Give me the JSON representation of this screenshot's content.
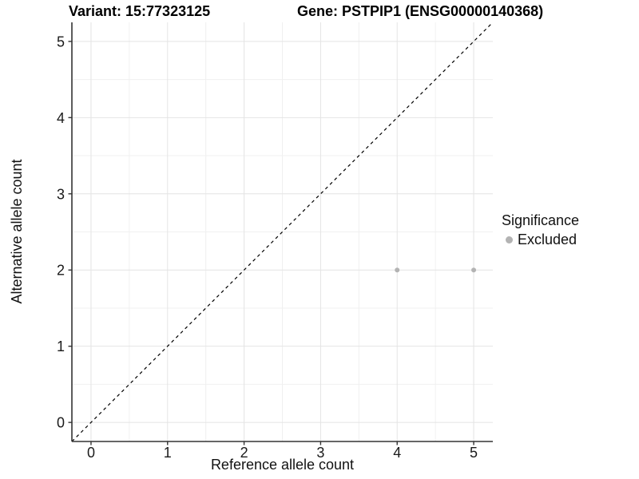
{
  "chart_data": {
    "type": "scatter",
    "title_left": "Variant: 15:77323125",
    "title_right": "Gene: PSTPIP1 (ENSG00000140368)",
    "xlabel": "Reference allele count",
    "ylabel": "Alternative allele count",
    "xlim": [
      -0.25,
      5.25
    ],
    "ylim": [
      -0.25,
      5.25
    ],
    "x_ticks": [
      0,
      1,
      2,
      3,
      4,
      5
    ],
    "y_ticks": [
      0,
      1,
      2,
      3,
      4,
      5
    ],
    "grid": "major at integers, minor at 0.5 steps, light gray on white",
    "legend_position": "right",
    "series": [
      {
        "name": "Excluded",
        "marker": "circle",
        "color": "#b3b3b3",
        "points": [
          {
            "x": 4,
            "y": 2
          },
          {
            "x": 5,
            "y": 2
          }
        ]
      }
    ],
    "reference_line": {
      "shape": "y = x diagonal",
      "style": "dashed",
      "color": "#000000"
    }
  },
  "legend": {
    "title": "Significance",
    "items": [
      {
        "label": "Excluded",
        "color": "#b3b3b3"
      }
    ]
  },
  "style": {
    "background": "#ffffff",
    "grid_major": "#e4e4e4",
    "grid_minor": "#f0f0f0",
    "axis_line": "#333333",
    "tick_mark": "#333333",
    "tick_label_color": "#1a1a1a",
    "point_color": "#b3b3b3"
  }
}
